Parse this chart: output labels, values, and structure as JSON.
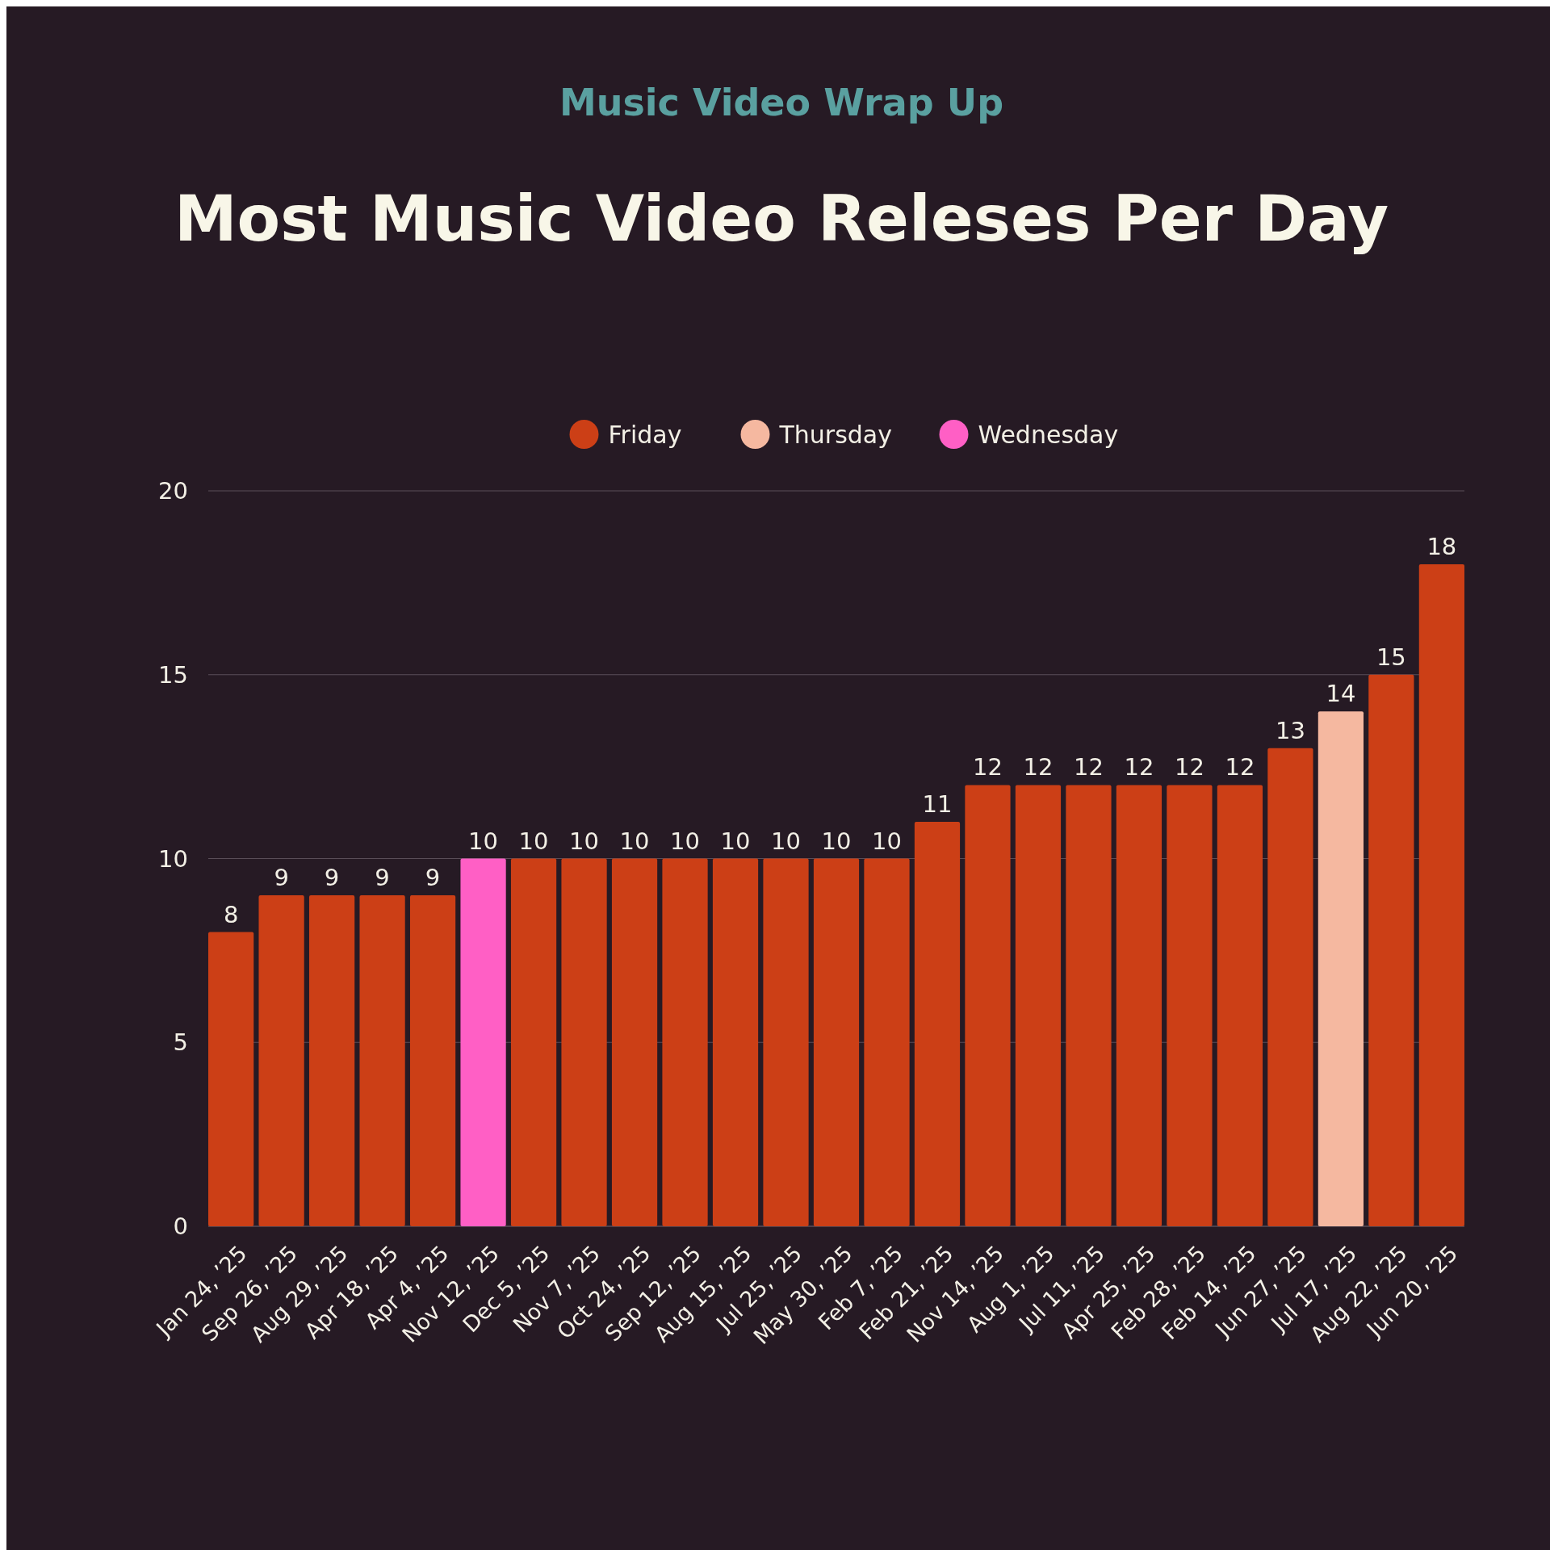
{
  "chart_data": {
    "type": "bar",
    "subtitle": "Music Video Wrap Up",
    "title": "Most Music Video Releses Per Day",
    "categories": [
      "Jan 24, ’25",
      "Sep 26, ’25",
      "Aug 29, ’25",
      "Apr 18, ’25",
      "Apr 4, ’25",
      "Nov 12, ’25",
      "Dec 5, ’25",
      "Nov 7, ’25",
      "Oct 24, ’25",
      "Sep 12, ’25",
      "Aug 15, ’25",
      "Jul 25, ’25",
      "May 30, ’25",
      "Feb 7, ’25",
      "Feb 21, ’25",
      "Nov 14, ’25",
      "Aug 1, ’25",
      "Jul 11, ’25",
      "Apr 25, ’25",
      "Feb 28, ’25",
      "Feb 14, ’25",
      "Jun 27, ’25",
      "Jul 17, ’25",
      "Aug 22, ’25",
      "Jun 20, ’25"
    ],
    "series": [
      {
        "name": "Friday",
        "color": "#cc3f16",
        "values": [
          8,
          9,
          9,
          9,
          9,
          null,
          10,
          10,
          10,
          10,
          10,
          10,
          10,
          10,
          11,
          12,
          12,
          12,
          12,
          12,
          12,
          13,
          null,
          15,
          18
        ]
      },
      {
        "name": "Thursday",
        "color": "#f5b8a0",
        "values": [
          null,
          null,
          null,
          null,
          null,
          null,
          null,
          null,
          null,
          null,
          null,
          null,
          null,
          null,
          null,
          null,
          null,
          null,
          null,
          null,
          null,
          null,
          14,
          null,
          null
        ]
      },
      {
        "name": "Wednesday",
        "color": "#ff5fc5",
        "values": [
          null,
          null,
          null,
          null,
          null,
          10,
          null,
          null,
          null,
          null,
          null,
          null,
          null,
          null,
          null,
          null,
          null,
          null,
          null,
          null,
          null,
          null,
          null,
          null,
          null
        ]
      }
    ],
    "stacked": true,
    "ylim": [
      0,
      20
    ],
    "yticks": [
      0,
      5,
      10,
      15,
      20
    ],
    "grid": "y",
    "legend": "top",
    "data_labels": true
  }
}
